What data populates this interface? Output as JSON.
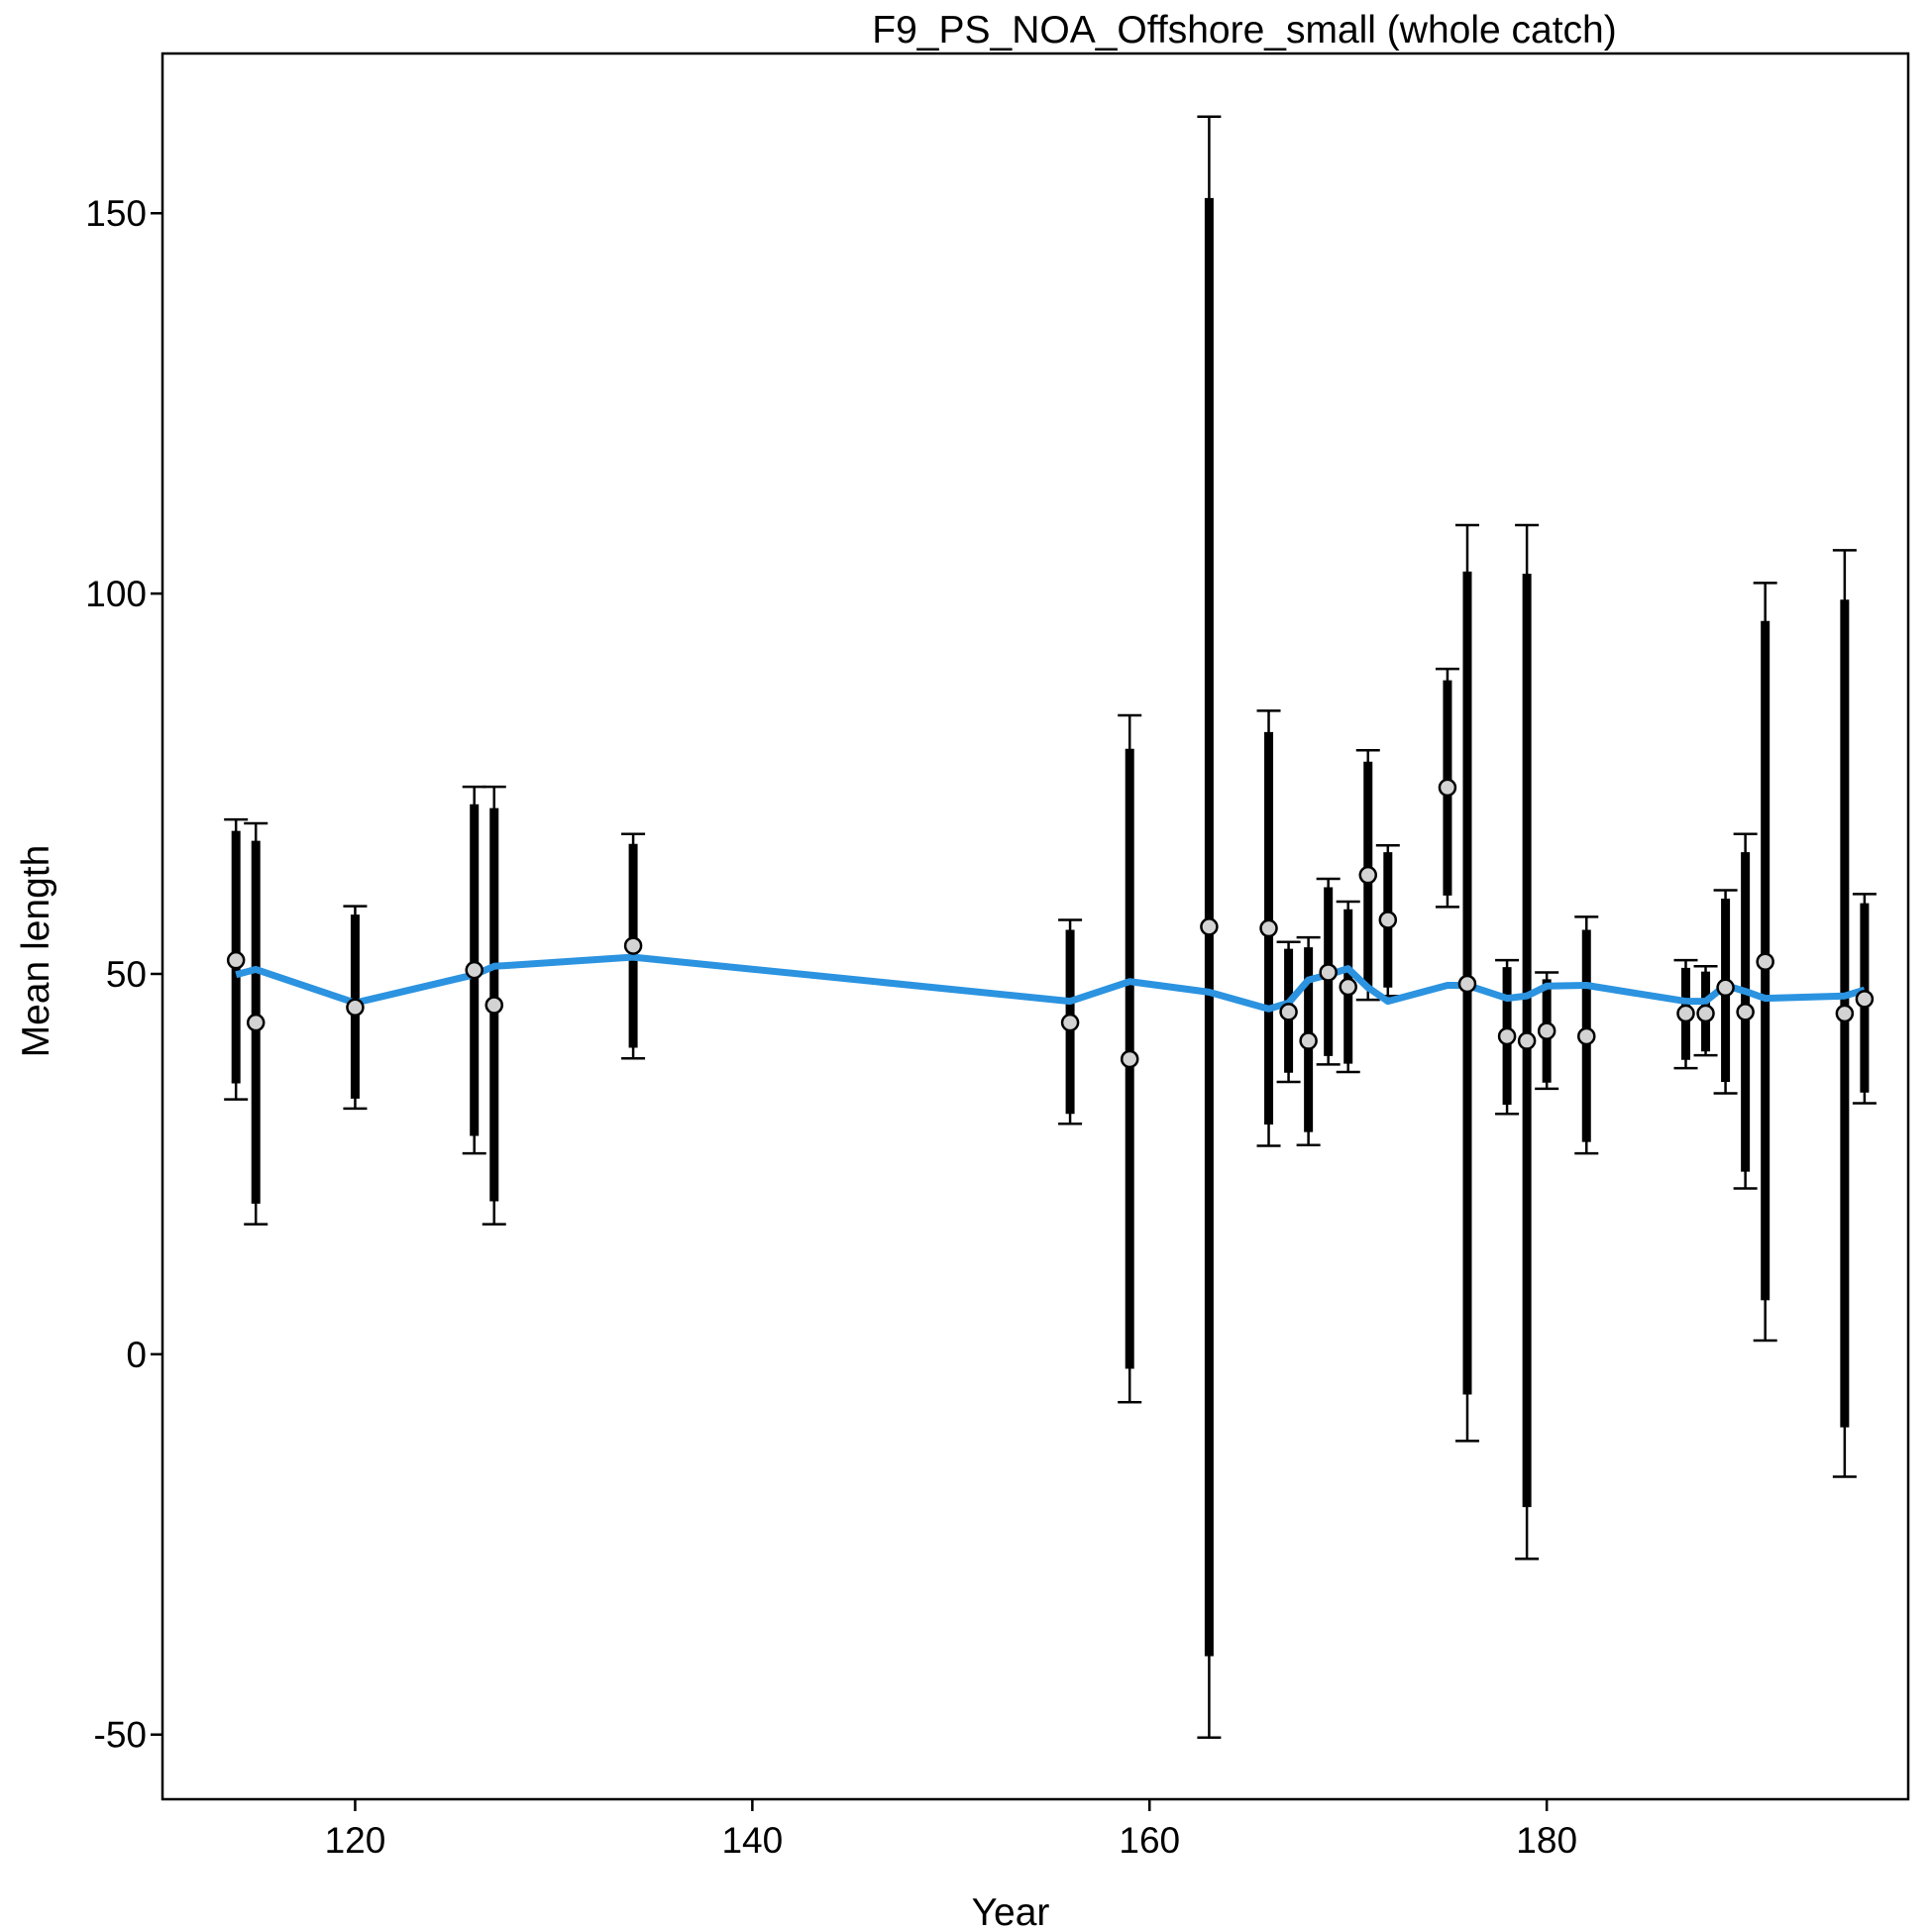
{
  "chart_data": {
    "type": "scatter",
    "title": "F9_PS_NOA_Offshore_small (whole catch)",
    "xlabel": "Year",
    "ylabel": "Mean length",
    "xlim": [
      110.3,
      198.2
    ],
    "ylim": [
      -58.5,
      171
    ],
    "xticks": [
      120,
      140,
      160,
      180
    ],
    "yticks": [
      -50,
      0,
      50,
      100,
      150
    ],
    "grid": false,
    "colors": {
      "expected_line": "#2b93e0",
      "observed_point_fill": "#d3d3d3",
      "interval_color": "#000000"
    },
    "series": [
      {
        "kind": "observed",
        "points": [
          {
            "x": 114,
            "y": 51.8,
            "inner": [
              35.6,
              68.8
            ],
            "outer": [
              33.5,
              70.3
            ]
          },
          {
            "x": 115,
            "y": 43.6,
            "inner": [
              19.8,
              67.5
            ],
            "outer": [
              17.1,
              69.8
            ]
          },
          {
            "x": 120,
            "y": 45.6,
            "inner": [
              33.6,
              57.8
            ],
            "outer": [
              32.3,
              58.9
            ]
          },
          {
            "x": 126,
            "y": 50.5,
            "inner": [
              28.7,
              72.3
            ],
            "outer": [
              26.4,
              74.6
            ]
          },
          {
            "x": 127,
            "y": 45.9,
            "inner": [
              20.1,
              71.8
            ],
            "outer": [
              17.1,
              74.6
            ]
          },
          {
            "x": 134,
            "y": 53.7,
            "inner": [
              40.3,
              67.1
            ],
            "outer": [
              38.9,
              68.4
            ]
          },
          {
            "x": 156,
            "y": 43.6,
            "inner": [
              31.6,
              55.8
            ],
            "outer": [
              30.3,
              57.1
            ]
          },
          {
            "x": 159,
            "y": 38.8,
            "inner": [
              -1.9,
              79.6
            ],
            "outer": [
              -6.3,
              84.0
            ]
          },
          {
            "x": 163,
            "y": 56.2,
            "inner": [
              -39.7,
              152.0
            ],
            "outer": [
              -50.4,
              162.7
            ]
          },
          {
            "x": 166,
            "y": 56.0,
            "inner": [
              30.2,
              81.8
            ],
            "outer": [
              27.4,
              84.6
            ]
          },
          {
            "x": 167,
            "y": 45.0,
            "inner": [
              37.0,
              53.3
            ],
            "outer": [
              35.8,
              54.2
            ]
          },
          {
            "x": 168,
            "y": 41.2,
            "inner": [
              29.2,
              53.5
            ],
            "outer": [
              27.5,
              54.8
            ]
          },
          {
            "x": 169,
            "y": 50.2,
            "inner": [
              39.2,
              61.4
            ],
            "outer": [
              38.1,
              62.5
            ]
          },
          {
            "x": 170,
            "y": 48.3,
            "inner": [
              38.2,
              58.5
            ],
            "outer": [
              37.1,
              59.5
            ]
          },
          {
            "x": 171,
            "y": 63.0,
            "inner": [
              48.2,
              77.9
            ],
            "outer": [
              46.6,
              79.4
            ]
          },
          {
            "x": 172,
            "y": 57.1,
            "inner": [
              48.2,
              66.0
            ],
            "outer": [
              47.1,
              66.9
            ]
          },
          {
            "x": 175,
            "y": 74.5,
            "inner": [
              60.3,
              88.6
            ],
            "outer": [
              58.8,
              90.1
            ]
          },
          {
            "x": 176,
            "y": 48.7,
            "inner": [
              -5.3,
              102.9
            ],
            "outer": [
              -11.4,
              109.0
            ]
          },
          {
            "x": 178,
            "y": 41.8,
            "inner": [
              32.8,
              50.9
            ],
            "outer": [
              31.6,
              51.8
            ]
          },
          {
            "x": 179,
            "y": 41.2,
            "inner": [
              -20.1,
              102.6
            ],
            "outer": [
              -26.9,
              109.0
            ]
          },
          {
            "x": 180,
            "y": 42.5,
            "inner": [
              35.7,
              49.3
            ],
            "outer": [
              34.9,
              50.2
            ]
          },
          {
            "x": 182,
            "y": 41.8,
            "inner": [
              27.9,
              55.8
            ],
            "outer": [
              26.4,
              57.5
            ]
          },
          {
            "x": 187,
            "y": 44.8,
            "inner": [
              38.7,
              50.8
            ],
            "outer": [
              37.6,
              51.8
            ]
          },
          {
            "x": 188,
            "y": 44.8,
            "inner": [
              39.8,
              50.3
            ],
            "outer": [
              39.3,
              51.0
            ]
          },
          {
            "x": 189,
            "y": 48.2,
            "inner": [
              35.8,
              59.9
            ],
            "outer": [
              34.3,
              61.0
            ]
          },
          {
            "x": 190,
            "y": 45.0,
            "inner": [
              24.0,
              66.0
            ],
            "outer": [
              21.8,
              68.4
            ]
          },
          {
            "x": 191,
            "y": 51.6,
            "inner": [
              7.1,
              96.4
            ],
            "outer": [
              1.8,
              101.4
            ]
          },
          {
            "x": 195,
            "y": 44.8,
            "inner": [
              -9.6,
              99.2
            ],
            "outer": [
              -16.1,
              105.7
            ]
          },
          {
            "x": 196,
            "y": 46.7,
            "inner": [
              34.4,
              59.3
            ],
            "outer": [
              33.0,
              60.5
            ]
          }
        ]
      },
      {
        "kind": "expected",
        "points": [
          {
            "x": 114,
            "y": 49.9
          },
          {
            "x": 115,
            "y": 50.6
          },
          {
            "x": 120,
            "y": 46.2
          },
          {
            "x": 126,
            "y": 49.9
          },
          {
            "x": 127,
            "y": 51.0
          },
          {
            "x": 134,
            "y": 52.2
          },
          {
            "x": 156,
            "y": 46.4
          },
          {
            "x": 159,
            "y": 49.0
          },
          {
            "x": 163,
            "y": 47.6
          },
          {
            "x": 166,
            "y": 45.4
          },
          {
            "x": 167,
            "y": 46.2
          },
          {
            "x": 168,
            "y": 49.2
          },
          {
            "x": 169,
            "y": 49.9
          },
          {
            "x": 170,
            "y": 50.7
          },
          {
            "x": 171,
            "y": 48.2
          },
          {
            "x": 172,
            "y": 46.4
          },
          {
            "x": 175,
            "y": 48.5
          },
          {
            "x": 176,
            "y": 48.5
          },
          {
            "x": 178,
            "y": 46.8
          },
          {
            "x": 179,
            "y": 47.1
          },
          {
            "x": 180,
            "y": 48.4
          },
          {
            "x": 182,
            "y": 48.5
          },
          {
            "x": 187,
            "y": 46.4
          },
          {
            "x": 188,
            "y": 46.4
          },
          {
            "x": 189,
            "y": 48.5
          },
          {
            "x": 190,
            "y": 47.7
          },
          {
            "x": 191,
            "y": 46.8
          },
          {
            "x": 195,
            "y": 47.1
          },
          {
            "x": 196,
            "y": 47.9
          }
        ]
      }
    ]
  }
}
